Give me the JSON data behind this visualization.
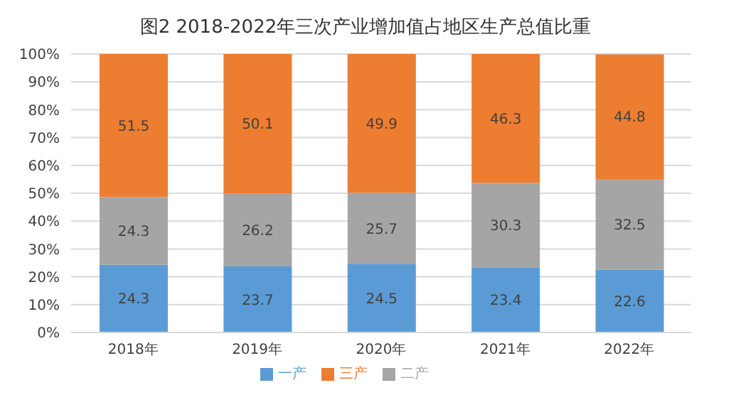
{
  "chart_data": {
    "type": "bar",
    "title": "图2 2018-2022年三次产业增加值占地区生产总值比重",
    "categories": [
      "2018年",
      "2019年",
      "2020年",
      "2021年",
      "2022年"
    ],
    "stacked": true,
    "series": [
      {
        "name": "一产",
        "color": "#5b9bd5",
        "values": [
          24.3,
          23.7,
          24.5,
          23.4,
          22.6
        ]
      },
      {
        "name": "二产",
        "color": "#a5a5a5",
        "values": [
          24.3,
          26.2,
          25.7,
          30.3,
          32.5
        ]
      },
      {
        "name": "三产",
        "color": "#ed7d31",
        "values": [
          51.5,
          50.1,
          49.9,
          46.3,
          44.8
        ]
      }
    ],
    "ylim": [
      0,
      100
    ],
    "yticks": [
      {
        "value": 0,
        "label": "0%"
      },
      {
        "value": 10,
        "label": "10%"
      },
      {
        "value": 20,
        "label": "20%"
      },
      {
        "value": 30,
        "label": "30%"
      },
      {
        "value": 40,
        "label": "40%"
      },
      {
        "value": 50,
        "label": "50%"
      },
      {
        "value": 60,
        "label": "60%"
      },
      {
        "value": 70,
        "label": "70%"
      },
      {
        "value": 80,
        "label": "80%"
      },
      {
        "value": 90,
        "label": "90%"
      },
      {
        "value": 100,
        "label": "100%"
      }
    ],
    "grid": "y",
    "legend": "bottom",
    "data_labels": true
  }
}
